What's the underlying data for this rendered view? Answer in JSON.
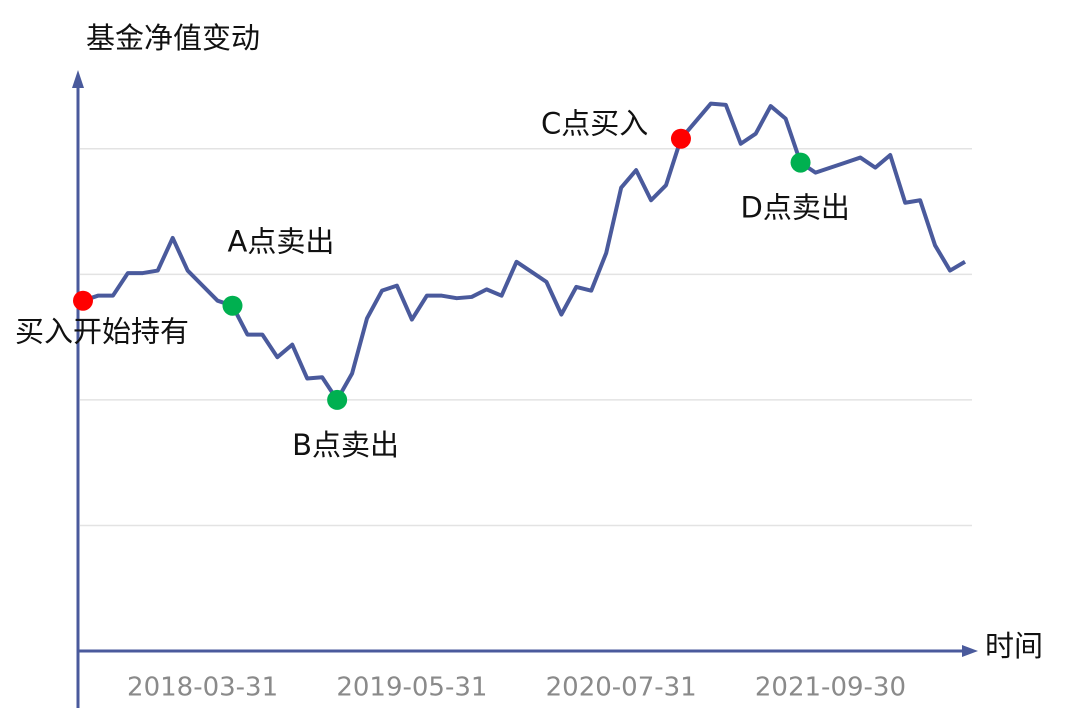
{
  "chart_data": {
    "type": "line",
    "y_label": "基金净值变动",
    "x_label": "时间",
    "categories": [
      null,
      null,
      null,
      null,
      null,
      null,
      null,
      null,
      "2018-03-31",
      null,
      null,
      null,
      null,
      null,
      null,
      null,
      null,
      null,
      null,
      null,
      null,
      null,
      "2019-05-31",
      null,
      null,
      null,
      null,
      null,
      null,
      null,
      null,
      null,
      null,
      null,
      null,
      null,
      "2020-07-31",
      null,
      null,
      null,
      null,
      null,
      null,
      null,
      null,
      null,
      null,
      null,
      null,
      null,
      "2021-09-30",
      null,
      null,
      null,
      null,
      null,
      null,
      null,
      null,
      null
    ],
    "series": [
      {
        "color": "#4a5a9c",
        "values": [
          2.79,
          2.83,
          2.83,
          3.01,
          3.01,
          3.03,
          3.29,
          3.03,
          2.91,
          2.79,
          2.75,
          2.52,
          2.52,
          2.34,
          2.44,
          2.17,
          2.18,
          2.0,
          2.21,
          2.65,
          2.87,
          2.91,
          2.64,
          2.83,
          2.83,
          2.81,
          2.82,
          2.88,
          2.83,
          3.1,
          3.02,
          2.94,
          2.68,
          2.9,
          2.87,
          3.17,
          3.69,
          3.83,
          3.59,
          3.71,
          4.08,
          4.22,
          4.36,
          4.35,
          4.04,
          4.12,
          4.34,
          4.24,
          3.89,
          3.81,
          3.85,
          3.89,
          3.93,
          3.85,
          3.95,
          3.57,
          3.59,
          3.23,
          3.03,
          3.1
        ]
      }
    ],
    "annotations": [
      {
        "text": "买入开始持有",
        "index": 0,
        "color": "#ff0000"
      },
      {
        "text": "A点卖出",
        "index": 10,
        "color": "#00b050"
      },
      {
        "text": "B点卖出",
        "index": 17,
        "color": "#00b050"
      },
      {
        "text": "C点买入",
        "index": 40,
        "color": "#ff0000"
      },
      {
        "text": "D点卖出",
        "index": 48,
        "color": "#00b050"
      }
    ],
    "ylim": [
      0,
      4.5
    ],
    "yticks": [
      1,
      2,
      3,
      4
    ],
    "grid": true
  }
}
